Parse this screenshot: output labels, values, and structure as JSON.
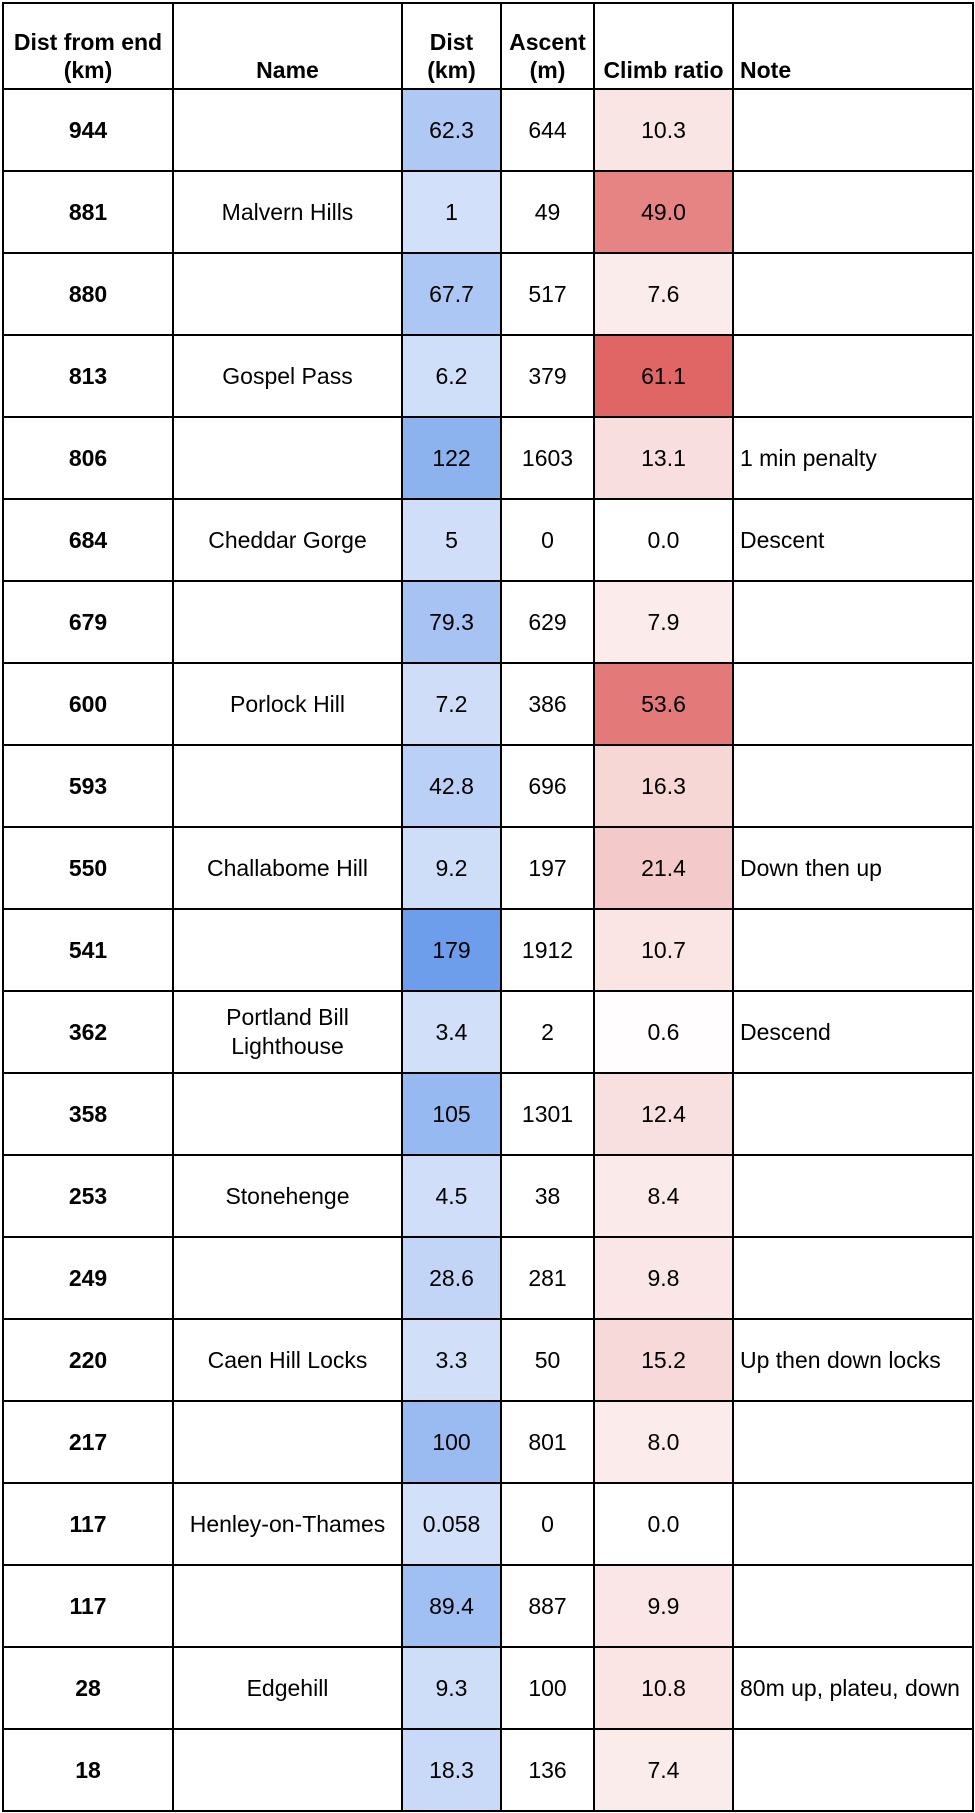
{
  "headers": {
    "dist_from_end": "Dist from end (km)",
    "name": "Name",
    "dist": "Dist (km)",
    "ascent": "Ascent (m)",
    "climb_ratio": "Climb ratio",
    "note": "Note"
  },
  "rows": [
    {
      "dist_from_end": "944",
      "name": "",
      "dist": "62.3",
      "ascent": "644",
      "climb_ratio": "10.3",
      "note": ""
    },
    {
      "dist_from_end": "881",
      "name": "Malvern Hills",
      "dist": "1",
      "ascent": "49",
      "climb_ratio": "49.0",
      "note": ""
    },
    {
      "dist_from_end": "880",
      "name": "",
      "dist": "67.7",
      "ascent": "517",
      "climb_ratio": "7.6",
      "note": ""
    },
    {
      "dist_from_end": "813",
      "name": "Gospel Pass",
      "dist": "6.2",
      "ascent": "379",
      "climb_ratio": "61.1",
      "note": ""
    },
    {
      "dist_from_end": "806",
      "name": "",
      "dist": "122",
      "ascent": "1603",
      "climb_ratio": "13.1",
      "note": "1 min penalty"
    },
    {
      "dist_from_end": "684",
      "name": "Cheddar Gorge",
      "dist": "5",
      "ascent": "0",
      "climb_ratio": "0.0",
      "note": "Descent"
    },
    {
      "dist_from_end": "679",
      "name": "",
      "dist": "79.3",
      "ascent": "629",
      "climb_ratio": "7.9",
      "note": ""
    },
    {
      "dist_from_end": "600",
      "name": "Porlock Hill",
      "dist": "7.2",
      "ascent": "386",
      "climb_ratio": "53.6",
      "note": ""
    },
    {
      "dist_from_end": "593",
      "name": "",
      "dist": "42.8",
      "ascent": "696",
      "climb_ratio": "16.3",
      "note": ""
    },
    {
      "dist_from_end": "550",
      "name": "Challabome Hill",
      "dist": "9.2",
      "ascent": "197",
      "climb_ratio": "21.4",
      "note": "Down then up"
    },
    {
      "dist_from_end": "541",
      "name": "",
      "dist": "179",
      "ascent": "1912",
      "climb_ratio": "10.7",
      "note": ""
    },
    {
      "dist_from_end": "362",
      "name": "Portland Bill Lighthouse",
      "dist": "3.4",
      "ascent": "2",
      "climb_ratio": "0.6",
      "note": "Descend"
    },
    {
      "dist_from_end": "358",
      "name": "",
      "dist": "105",
      "ascent": "1301",
      "climb_ratio": "12.4",
      "note": ""
    },
    {
      "dist_from_end": "253",
      "name": "Stonehenge",
      "dist": "4.5",
      "ascent": "38",
      "climb_ratio": "8.4",
      "note": ""
    },
    {
      "dist_from_end": "249",
      "name": "",
      "dist": "28.6",
      "ascent": "281",
      "climb_ratio": "9.8",
      "note": ""
    },
    {
      "dist_from_end": "220",
      "name": "Caen Hill Locks",
      "dist": "3.3",
      "ascent": "50",
      "climb_ratio": "15.2",
      "note": "Up then down locks"
    },
    {
      "dist_from_end": "217",
      "name": "",
      "dist": "100",
      "ascent": "801",
      "climb_ratio": "8.0",
      "note": ""
    },
    {
      "dist_from_end": "117",
      "name": "Henley-on-Thames",
      "dist": "0.058",
      "ascent": "0",
      "climb_ratio": "0.0",
      "note": ""
    },
    {
      "dist_from_end": "117",
      "name": "",
      "dist": "89.4",
      "ascent": "887",
      "climb_ratio": "9.9",
      "note": ""
    },
    {
      "dist_from_end": "28",
      "name": "Edgehill",
      "dist": "9.3",
      "ascent": "100",
      "climb_ratio": "10.8",
      "note": "80m up, plateu, down"
    },
    {
      "dist_from_end": "18",
      "name": "",
      "dist": "18.3",
      "ascent": "136",
      "climb_ratio": "7.4",
      "note": ""
    }
  ],
  "colors": {
    "dist_scale_low": "#d3e0f9",
    "dist_scale_high": "#6d9eeb",
    "climb_scale_low": "#ffffff",
    "climb_scale_high": "#e06666",
    "border": "#000000"
  }
}
